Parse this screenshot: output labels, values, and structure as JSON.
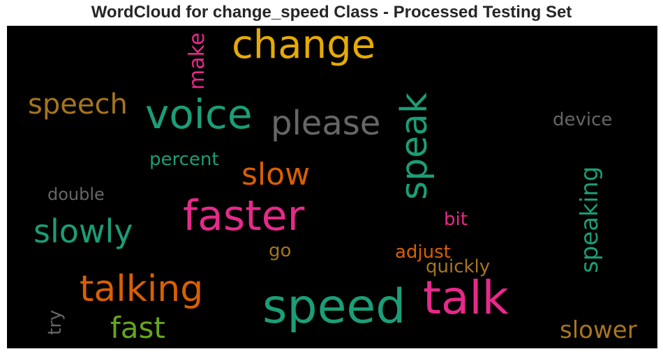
{
  "chart_data": {
    "type": "wordcloud",
    "title": "WordCloud for change_speed Class - Processed Testing Set",
    "words": [
      {
        "text": "change",
        "color": "#e6ab02",
        "orientation": "horizontal"
      },
      {
        "text": "make",
        "color": "#e7298a",
        "orientation": "vertical"
      },
      {
        "text": "speech",
        "color": "#a6761d",
        "orientation": "horizontal"
      },
      {
        "text": "voice",
        "color": "#1b9e77",
        "orientation": "horizontal"
      },
      {
        "text": "please",
        "color": "#666666",
        "orientation": "horizontal"
      },
      {
        "text": "speak",
        "color": "#1b9e77",
        "orientation": "vertical"
      },
      {
        "text": "device",
        "color": "#666666",
        "orientation": "horizontal"
      },
      {
        "text": "percent",
        "color": "#1b9e77",
        "orientation": "horizontal"
      },
      {
        "text": "slow",
        "color": "#d95f02",
        "orientation": "horizontal"
      },
      {
        "text": "double",
        "color": "#666666",
        "orientation": "horizontal"
      },
      {
        "text": "faster",
        "color": "#e7298a",
        "orientation": "horizontal"
      },
      {
        "text": "speaking",
        "color": "#1b9e77",
        "orientation": "vertical"
      },
      {
        "text": "slowly",
        "color": "#1b9e77",
        "orientation": "horizontal"
      },
      {
        "text": "bit",
        "color": "#e7298a",
        "orientation": "horizontal"
      },
      {
        "text": "go",
        "color": "#a6761d",
        "orientation": "horizontal"
      },
      {
        "text": "adjust",
        "color": "#d95f02",
        "orientation": "horizontal"
      },
      {
        "text": "quickly",
        "color": "#a6761d",
        "orientation": "horizontal"
      },
      {
        "text": "talking",
        "color": "#d95f02",
        "orientation": "horizontal"
      },
      {
        "text": "speed",
        "color": "#1b9e77",
        "orientation": "horizontal"
      },
      {
        "text": "talk",
        "color": "#e7298a",
        "orientation": "horizontal"
      },
      {
        "text": "try",
        "color": "#666666",
        "orientation": "vertical"
      },
      {
        "text": "fast",
        "color": "#66a61e",
        "orientation": "horizontal"
      },
      {
        "text": "slower",
        "color": "#a6761d",
        "orientation": "horizontal"
      }
    ]
  }
}
